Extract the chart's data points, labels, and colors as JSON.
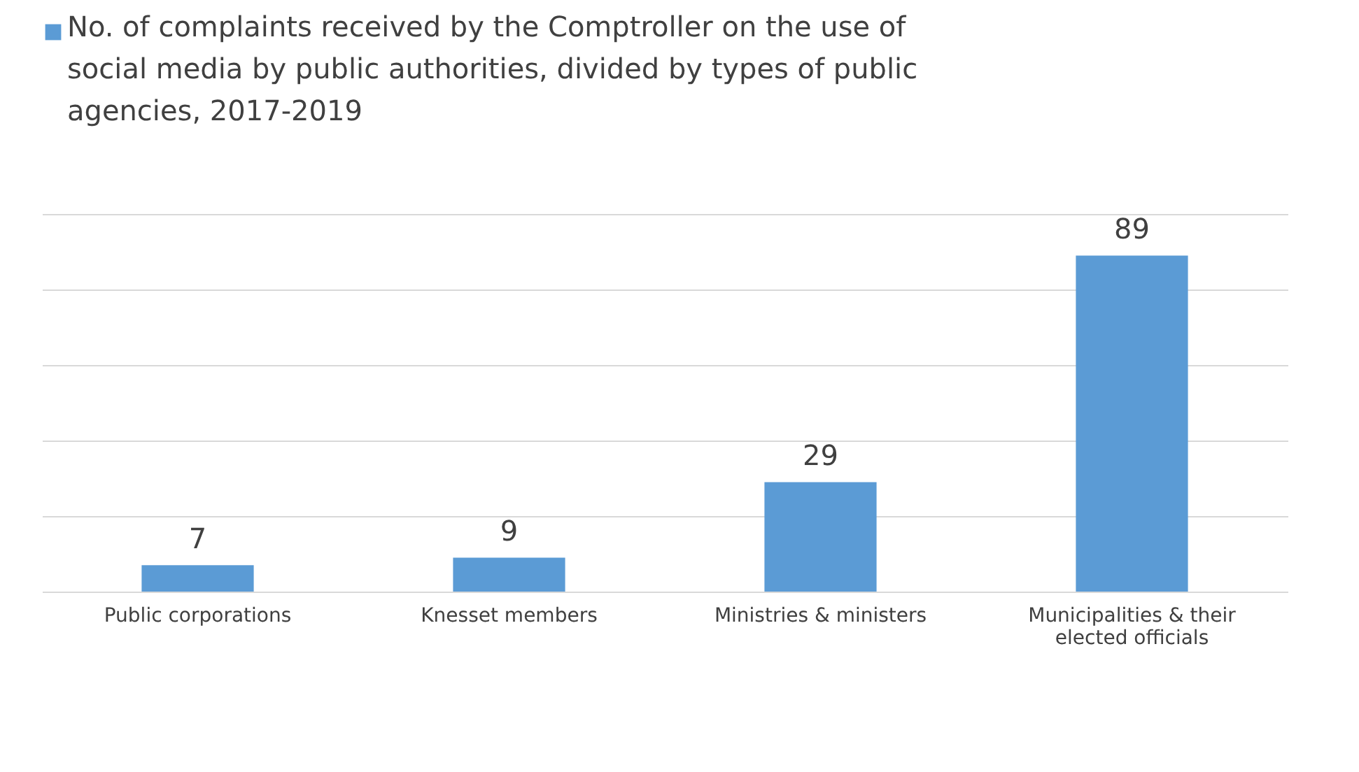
{
  "chart_data": {
    "type": "bar",
    "categories": [
      "Public corporations",
      "Knesset members",
      "Ministries & ministers",
      "Municipalities & their elected officials"
    ],
    "series": [
      {
        "name": "No. of complaints received by the Comptroller on the use of social media by public authorities, divided by types of public agencies, 2017-2019",
        "color": "#5b9bd5",
        "values": [
          7,
          9,
          29,
          89
        ]
      }
    ],
    "ylim": [
      0,
      100
    ],
    "yticks": [
      {
        "value": 0,
        "label": null
      },
      {
        "value": 20,
        "label": null
      },
      {
        "value": 40,
        "label": null
      },
      {
        "value": 60,
        "label": null
      },
      {
        "value": 80,
        "label": null
      },
      {
        "value": 100,
        "label": null
      }
    ],
    "tick_labels": "x",
    "grid": "y",
    "legend": "top",
    "data_labels": true
  }
}
